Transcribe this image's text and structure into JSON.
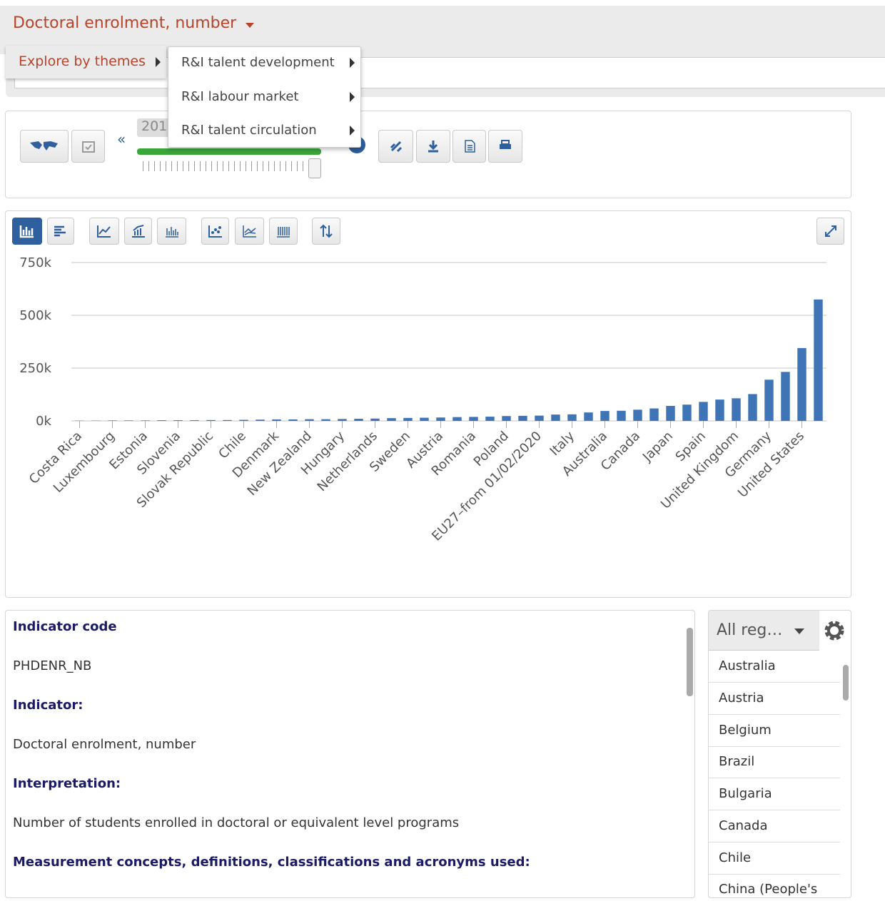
{
  "header": {
    "title": "Doctoral enrolment, number"
  },
  "menu": {
    "label": "Explore by themes",
    "items": [
      "R&I talent development",
      "R&I labour market",
      "R&I talent circulation"
    ]
  },
  "toolbar": {
    "year": "201"
  },
  "chart_data": {
    "type": "bar",
    "categories": [
      "Costa Rica",
      null,
      "Luxembourg",
      null,
      "Estonia",
      null,
      "Slovenia",
      null,
      "Slovak Republic",
      null,
      "Chile",
      null,
      "Denmark",
      null,
      "New Zealand",
      null,
      "Hungary",
      null,
      "Netherlands",
      null,
      "Sweden",
      null,
      "Austria",
      null,
      "Romania",
      null,
      "Poland",
      null,
      "EU27–from 01/02/2020",
      null,
      "Italy",
      null,
      "Australia",
      null,
      "Canada",
      null,
      "Japan",
      null,
      "Spain",
      null,
      "United Kingdom",
      null,
      "Germany",
      null,
      "United States",
      null
    ],
    "values": [
      1000,
      1000,
      2000,
      2000,
      2000,
      3000,
      3000,
      3000,
      4000,
      4000,
      5000,
      6000,
      7000,
      7000,
      8000,
      8000,
      9000,
      10000,
      11000,
      13000,
      14000,
      15000,
      16000,
      18000,
      19000,
      20000,
      23000,
      24000,
      25000,
      30000,
      31000,
      40000,
      47000,
      48000,
      53000,
      59000,
      71000,
      77000,
      90000,
      101000,
      107000,
      127000,
      195000,
      232000,
      345000,
      575000
    ],
    "color": "#3f74b7",
    "ylim": [
      0,
      750000
    ],
    "yticks": [
      {
        "value": 0,
        "label": "0k"
      },
      {
        "value": 250000,
        "label": "250k"
      },
      {
        "value": 500000,
        "label": "500k"
      },
      {
        "value": 750000,
        "label": "750k"
      }
    ],
    "grid": true
  },
  "info": {
    "sections": [
      {
        "heading": "Indicator code",
        "text": "PHDENR_NB"
      },
      {
        "heading": "Indicator:",
        "text": "Doctoral enrolment, number"
      },
      {
        "heading": "Interpretation:",
        "text": "Number of students enrolled in doctoral or equivalent level programs"
      },
      {
        "heading": "Measurement concepts, definitions, classifications and acronyms used:"
      }
    ]
  },
  "regions": {
    "selector": "All reg…",
    "items": [
      "Australia",
      "Austria",
      "Belgium",
      "Brazil",
      "Bulgaria",
      "Canada",
      "Chile",
      "China (People's"
    ]
  }
}
